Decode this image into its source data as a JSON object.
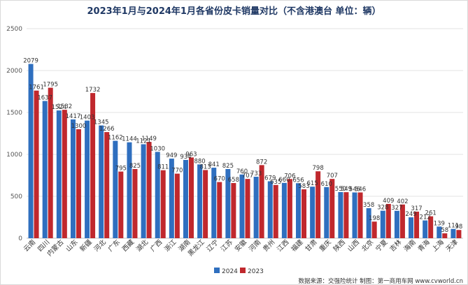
{
  "chart_data": {
    "type": "bar",
    "title": "2023年1月与2024年1月各省份皮卡销量对比（不含港澳台  单位：辆）",
    "categories": [
      "云南",
      "四川",
      "内蒙古",
      "山东",
      "新疆",
      "河北",
      "广东",
      "西藏",
      "湖北",
      "广西",
      "浙江",
      "湖南",
      "黑龙江",
      "辽宁",
      "江苏",
      "安徽",
      "河南",
      "贵州",
      "江西",
      "福建",
      "甘肃",
      "重庆",
      "陕西",
      "山西",
      "北京",
      "宁夏",
      "吉林",
      "海南",
      "青海",
      "上海",
      "天津"
    ],
    "series": [
      {
        "name": "2024",
        "color": "#2f6fbf",
        "values": [
          2079,
          1637,
          1524,
          1417,
          1403,
          1345,
          1162,
          1144,
          1121,
          1030,
          949,
          934,
          880,
          841,
          825,
          760,
          733,
          679,
          660,
          656,
          615,
          610,
          550,
          546,
          358,
          328,
          327,
          249,
          212,
          139,
          111
        ]
      },
      {
        "name": "2023",
        "color": "#c0282d",
        "values": [
          1761,
          1795,
          1532,
          1300,
          1732,
          1266,
          795,
          825,
          1149,
          811,
          770,
          963,
          813,
          670,
          658,
          707,
          872,
          635,
          706,
          583,
          798,
          707,
          549,
          546,
          198,
          409,
          402,
          317,
          261,
          58,
          98
        ]
      }
    ],
    "ylim": [
      0,
      2500
    ],
    "yticks": [
      "0",
      "500",
      "1000",
      "1500",
      "2000",
      "2500"
    ],
    "grid": true,
    "legend_position": "bottom-center",
    "source_note": "数据来源：交强险统计  制图：第一商用车网 www.cvworld.cn"
  }
}
